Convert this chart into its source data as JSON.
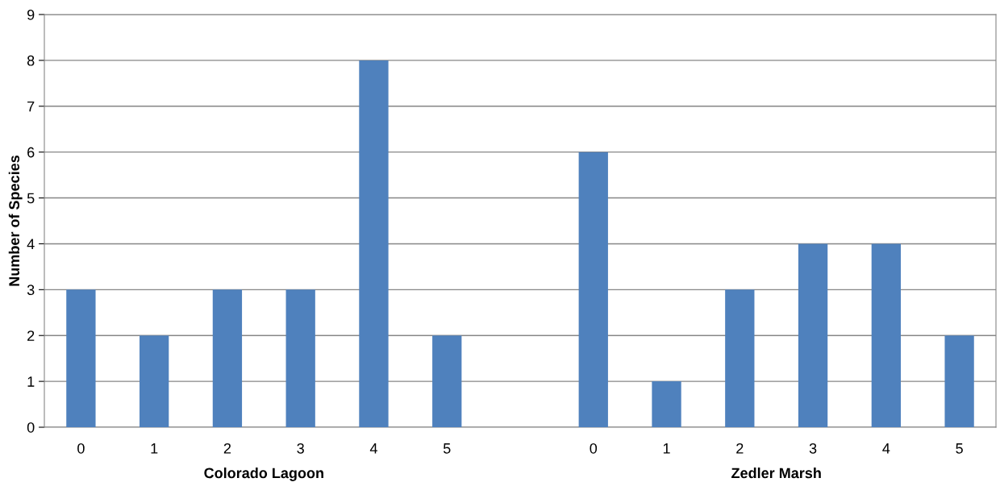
{
  "chart_data": {
    "type": "bar",
    "ylabel": "Number of Species",
    "categories": [
      "0",
      "1",
      "2",
      "3",
      "4",
      "5",
      null,
      "0",
      "1",
      "2",
      "3",
      "4",
      "5"
    ],
    "values": [
      3,
      2,
      3,
      3,
      8,
      2,
      null,
      6,
      1,
      3,
      4,
      4,
      2
    ],
    "color": "#4f81bd",
    "ylim": [
      0,
      9
    ],
    "yticks": [
      0,
      1,
      2,
      3,
      4,
      5,
      6,
      7,
      8,
      9
    ],
    "grid": "y",
    "annotations": [
      "Colorado Lagoon",
      "Zedler Marsh"
    ]
  }
}
